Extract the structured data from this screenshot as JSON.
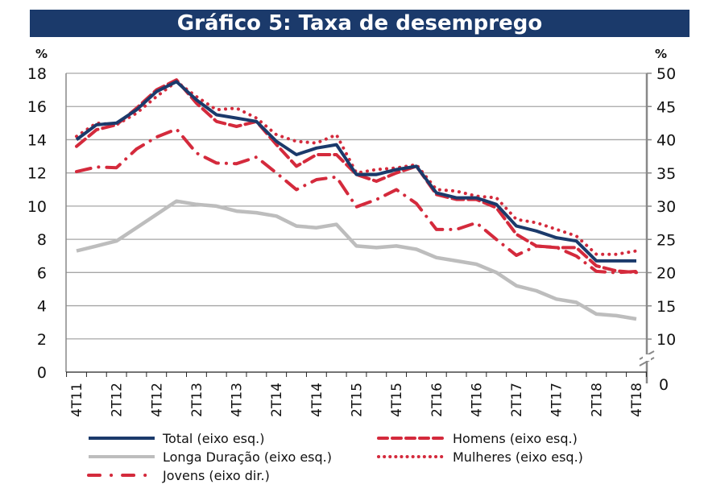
{
  "chart_data": {
    "type": "line",
    "title": "Gráfico 5: Taxa de desemprego",
    "left_unit": "%",
    "right_unit": "%",
    "left_axis": {
      "range": [
        0,
        18
      ],
      "ticks": [
        "0",
        "2",
        "4",
        "6",
        "8",
        "10",
        "12",
        "14",
        "16",
        "18"
      ]
    },
    "right_axis": {
      "range": [
        10,
        50
      ],
      "ticks": [
        "10",
        "15",
        "20",
        "25",
        "30",
        "35",
        "40",
        "45",
        "50"
      ],
      "break_label": "0",
      "broken": true
    },
    "grid": "horizontal",
    "legend_placement": "bottom",
    "x": [
      "4T11",
      "1T12",
      "2T12",
      "3T12",
      "4T12",
      "1T13",
      "2T13",
      "3T13",
      "4T13",
      "1T14",
      "2T14",
      "3T14",
      "4T14",
      "1T15",
      "2T15",
      "3T15",
      "4T15",
      "1T16",
      "2T16",
      "3T16",
      "4T16",
      "1T17",
      "2T17",
      "3T17",
      "4T17",
      "1T18",
      "2T18",
      "3T18",
      "4T18"
    ],
    "x_tick_labels": [
      "4T11",
      "2T12",
      "4T12",
      "2T13",
      "4T13",
      "2T14",
      "4T14",
      "2T15",
      "4T15",
      "2T16",
      "4T16",
      "2T17",
      "4T17",
      "2T18",
      "4T18"
    ],
    "series": [
      {
        "name": "Total (eixo esq.)",
        "axis": "left",
        "style": "solid",
        "color": "#1b3a6b",
        "values": [
          14.0,
          14.9,
          15.0,
          15.8,
          16.9,
          17.5,
          16.4,
          15.5,
          15.3,
          15.1,
          13.9,
          13.1,
          13.5,
          13.7,
          11.9,
          11.9,
          12.2,
          12.4,
          10.8,
          10.5,
          10.5,
          10.1,
          8.8,
          8.5,
          8.1,
          7.9,
          6.7,
          6.7,
          6.7
        ]
      },
      {
        "name": "Homens (eixo esq.)",
        "axis": "left",
        "style": "dashed",
        "color": "#d42a3c",
        "values": [
          13.6,
          14.6,
          14.9,
          15.9,
          17.0,
          17.6,
          16.2,
          15.1,
          14.8,
          15.1,
          13.7,
          12.4,
          13.1,
          13.1,
          11.9,
          11.5,
          12.0,
          12.4,
          10.7,
          10.4,
          10.4,
          9.9,
          8.3,
          7.6,
          7.5,
          7.5,
          6.4,
          6.1,
          6.0
        ]
      },
      {
        "name": "Longa Duração (eixo esq.)",
        "axis": "left",
        "style": "solid",
        "color": "#bdbdbd",
        "values": [
          7.3,
          7.6,
          7.9,
          8.7,
          9.5,
          10.3,
          10.1,
          10.0,
          9.7,
          9.6,
          9.4,
          8.8,
          8.7,
          8.9,
          7.6,
          7.5,
          7.6,
          7.4,
          6.9,
          6.7,
          6.5,
          6.0,
          5.2,
          4.9,
          4.4,
          4.2,
          3.5,
          3.4,
          3.2
        ]
      },
      {
        "name": "Mulheres (eixo esq.)",
        "axis": "left",
        "style": "dotted",
        "color": "#d42a3c",
        "values": [
          14.2,
          15.0,
          14.9,
          15.6,
          16.6,
          17.5,
          16.6,
          15.8,
          15.9,
          15.3,
          14.3,
          13.9,
          13.8,
          14.3,
          12.0,
          12.2,
          12.3,
          12.5,
          11.0,
          10.9,
          10.6,
          10.5,
          9.2,
          9.0,
          8.6,
          8.2,
          7.1,
          7.1,
          7.3
        ]
      },
      {
        "name": "Jovens (eixo dir.)",
        "axis": "right",
        "style": "dashdot",
        "color": "#d42a3c",
        "values": [
          35.2,
          35.9,
          35.8,
          38.6,
          40.4,
          41.6,
          38.0,
          36.5,
          36.4,
          37.4,
          35.0,
          32.5,
          34.0,
          34.4,
          29.9,
          31.0,
          32.5,
          30.4,
          26.5,
          26.5,
          27.5,
          25.0,
          22.6,
          24.0,
          23.8,
          22.5,
          20.2,
          20.0,
          20.2
        ]
      }
    ]
  }
}
